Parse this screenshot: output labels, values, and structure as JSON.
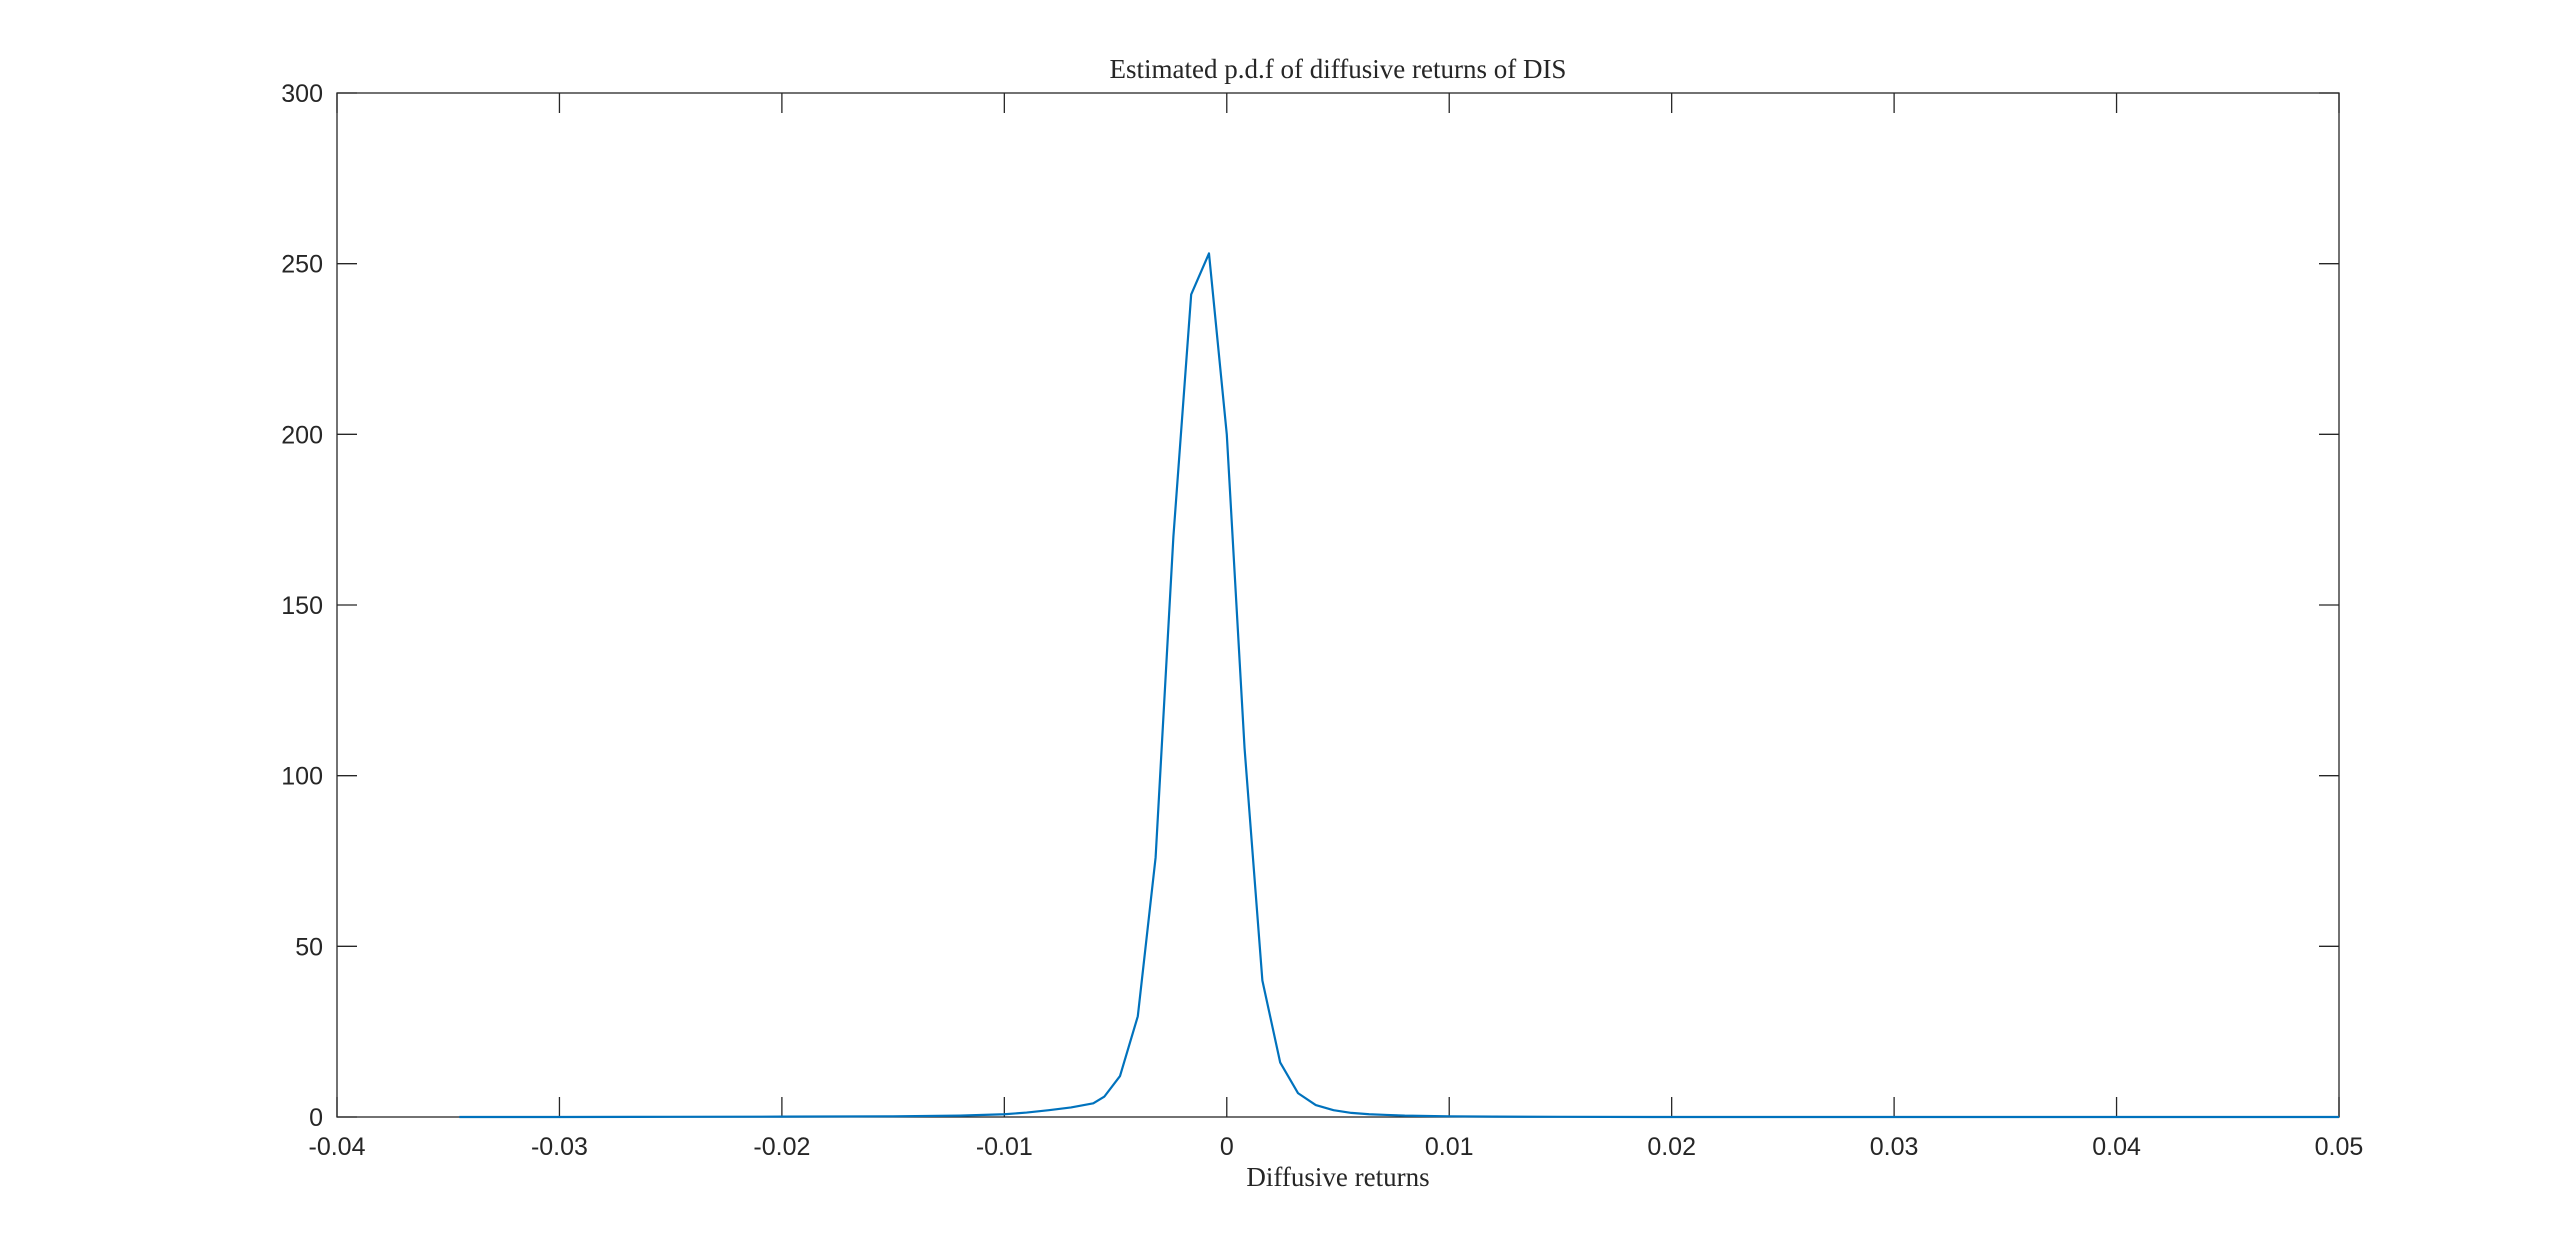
{
  "chart_data": {
    "type": "line",
    "title": "Estimated p.d.f of diffusive returns of DIS",
    "xlabel": "Diffusive returns",
    "ylabel": "",
    "xlim": [
      -0.04,
      0.05
    ],
    "ylim": [
      0,
      300
    ],
    "xticks": [
      -0.04,
      -0.03,
      -0.02,
      -0.01,
      0,
      0.01,
      0.02,
      0.03,
      0.04,
      0.05
    ],
    "xtick_labels": [
      "-0.04",
      "-0.03",
      "-0.02",
      "-0.01",
      "0",
      "0.01",
      "0.02",
      "0.03",
      "0.04",
      "0.05"
    ],
    "yticks": [
      0,
      50,
      100,
      150,
      200,
      250,
      300
    ],
    "ytick_labels": [
      "0",
      "50",
      "100",
      "150",
      "200",
      "250",
      "300"
    ],
    "grid": false,
    "line_color": "#0072BD",
    "series": [
      {
        "x": [
          -0.0345,
          -0.03,
          -0.025,
          -0.02,
          -0.015,
          -0.012,
          -0.01,
          -0.009,
          -0.008,
          -0.007,
          -0.006,
          -0.0055,
          -0.0048,
          -0.004,
          -0.0032,
          -0.0024,
          -0.0016,
          -0.0008,
          0.0,
          0.0008,
          0.0016,
          0.0024,
          0.0032,
          0.004,
          0.0048,
          0.0056,
          0.0064,
          0.0072,
          0.008,
          0.009,
          0.01,
          0.012,
          0.015,
          0.02,
          0.025,
          0.03,
          0.035,
          0.04,
          0.045,
          0.05
        ],
        "y": [
          0.0,
          0.0,
          0.05,
          0.1,
          0.2,
          0.4,
          0.8,
          1.3,
          2.0,
          2.8,
          4.0,
          6.0,
          12.0,
          29.5,
          76.0,
          170.0,
          241.0,
          253.0,
          200.0,
          108.0,
          40.0,
          16.0,
          7.0,
          3.5,
          2.0,
          1.2,
          0.8,
          0.6,
          0.4,
          0.3,
          0.2,
          0.1,
          0.05,
          0.0,
          0.0,
          0.0,
          0.0,
          0.0,
          0.0,
          0.0
        ]
      }
    ]
  }
}
